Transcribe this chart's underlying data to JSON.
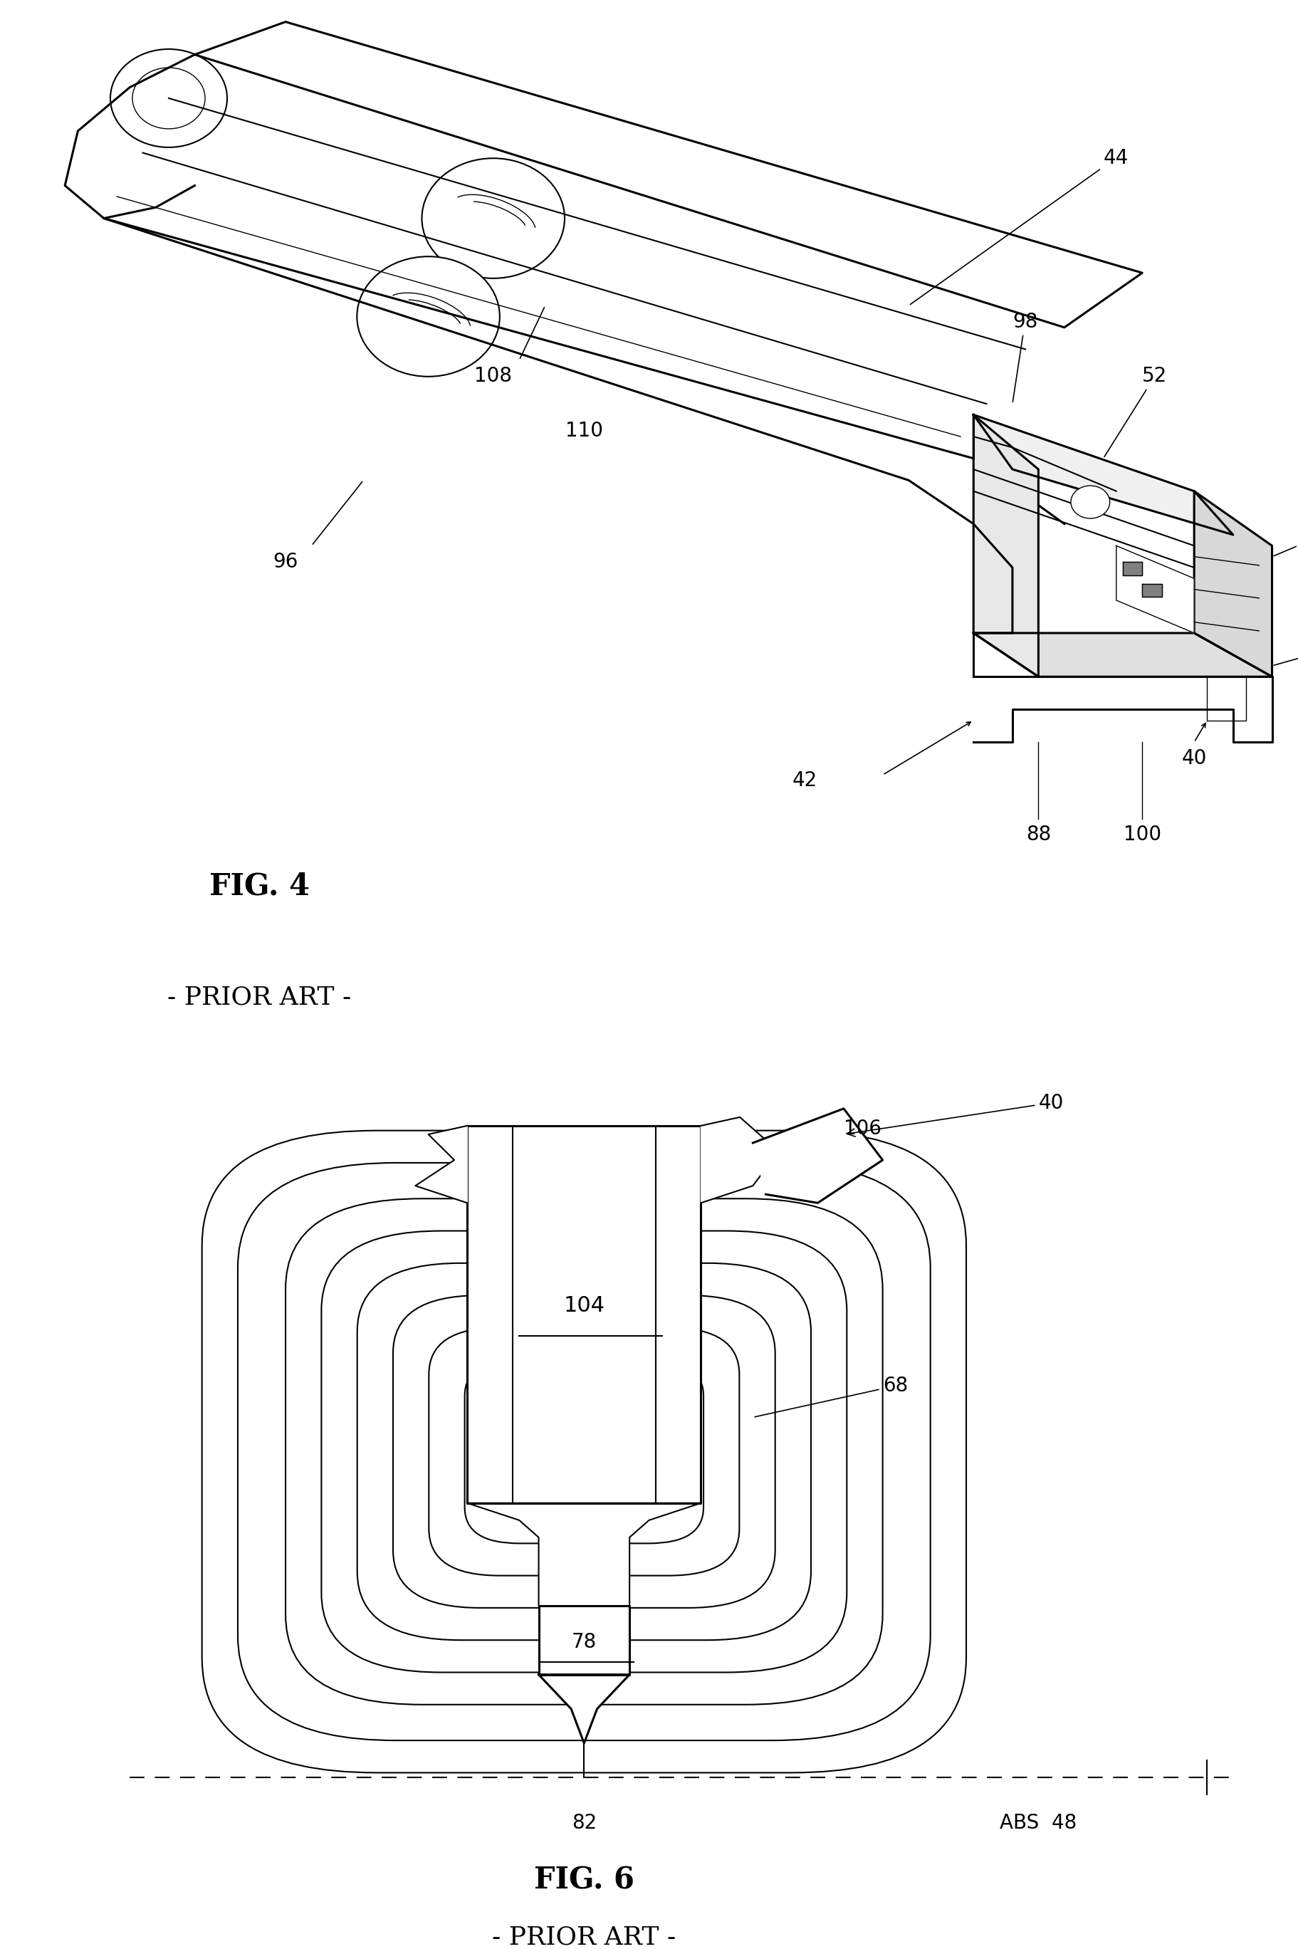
{
  "fig4_caption": "FIG. 4",
  "fig4_subcaption": "- PRIOR ART -",
  "fig6_caption": "FIG. 6",
  "fig6_subcaption": "- PRIOR ART -",
  "bg_color": "#ffffff",
  "line_color": "#000000",
  "label_fontsize": 20,
  "caption_fontsize": 30
}
